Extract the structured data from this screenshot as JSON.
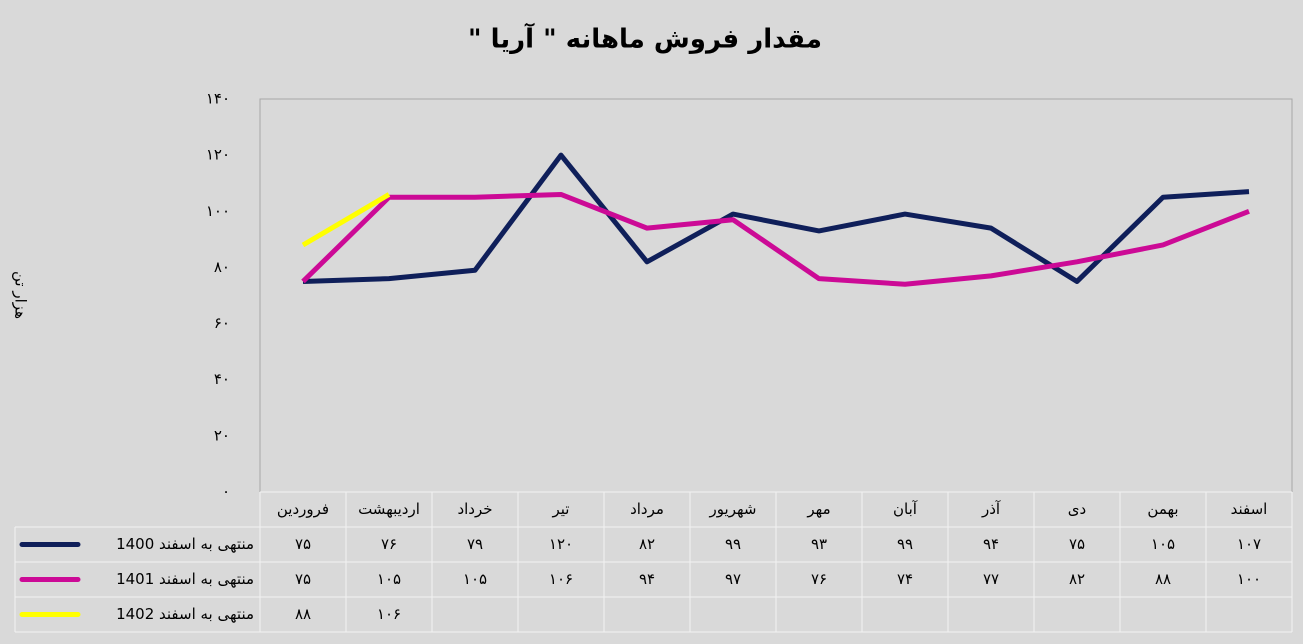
{
  "chart_data": {
    "type": "line",
    "title": "مقدار فروش ماهانه \" آریا \"",
    "y_label": "هزار تن",
    "categories": [
      "فروردین",
      "اردیبهشت",
      "خرداد",
      "تیر",
      "مرداد",
      "شهریور",
      "مهر",
      "آبان",
      "آذر",
      "دی",
      "بهمن",
      "اسفند"
    ],
    "series": [
      {
        "name": "منتهی به اسفند 1400",
        "color": "#0f1f5a",
        "values": [
          75,
          76,
          79,
          120,
          82,
          99,
          93,
          99,
          94,
          75,
          105,
          107
        ],
        "value_labels": [
          "۷۵",
          "۷۶",
          "۷۹",
          "۱۲۰",
          "۸۲",
          "۹۹",
          "۹۳",
          "۹۹",
          "۹۴",
          "۷۵",
          "۱۰۵",
          "۱۰۷"
        ]
      },
      {
        "name": "منتهی به اسفند 1401",
        "color": "#cc0a96",
        "values": [
          75,
          105,
          105,
          106,
          94,
          97,
          76,
          74,
          77,
          82,
          88,
          100
        ],
        "value_labels": [
          "۷۵",
          "۱۰۵",
          "۱۰۵",
          "۱۰۶",
          "۹۴",
          "۹۷",
          "۷۶",
          "۷۴",
          "۷۷",
          "۸۲",
          "۸۸",
          "۱۰۰"
        ]
      },
      {
        "name": "منتهی به اسفند 1402",
        "color": "#ffff00",
        "values": [
          88,
          106,
          null,
          null,
          null,
          null,
          null,
          null,
          null,
          null,
          null,
          null
        ],
        "value_labels": [
          "۸۸",
          "۱۰۶",
          null,
          null,
          null,
          null,
          null,
          null,
          null,
          null,
          null,
          null
        ]
      }
    ],
    "ylim": [
      0,
      140
    ],
    "yticks": [
      {
        "value": 0,
        "label": "۰"
      },
      {
        "value": 20,
        "label": "۲۰"
      },
      {
        "value": 40,
        "label": "۴۰"
      },
      {
        "value": 60,
        "label": "۶۰"
      },
      {
        "value": 80,
        "label": "۸۰"
      },
      {
        "value": 100,
        "label": "۱۰۰"
      },
      {
        "value": 120,
        "label": "۱۲۰"
      },
      {
        "value": 140,
        "label": "۱۴۰"
      }
    ],
    "grid": false
  }
}
